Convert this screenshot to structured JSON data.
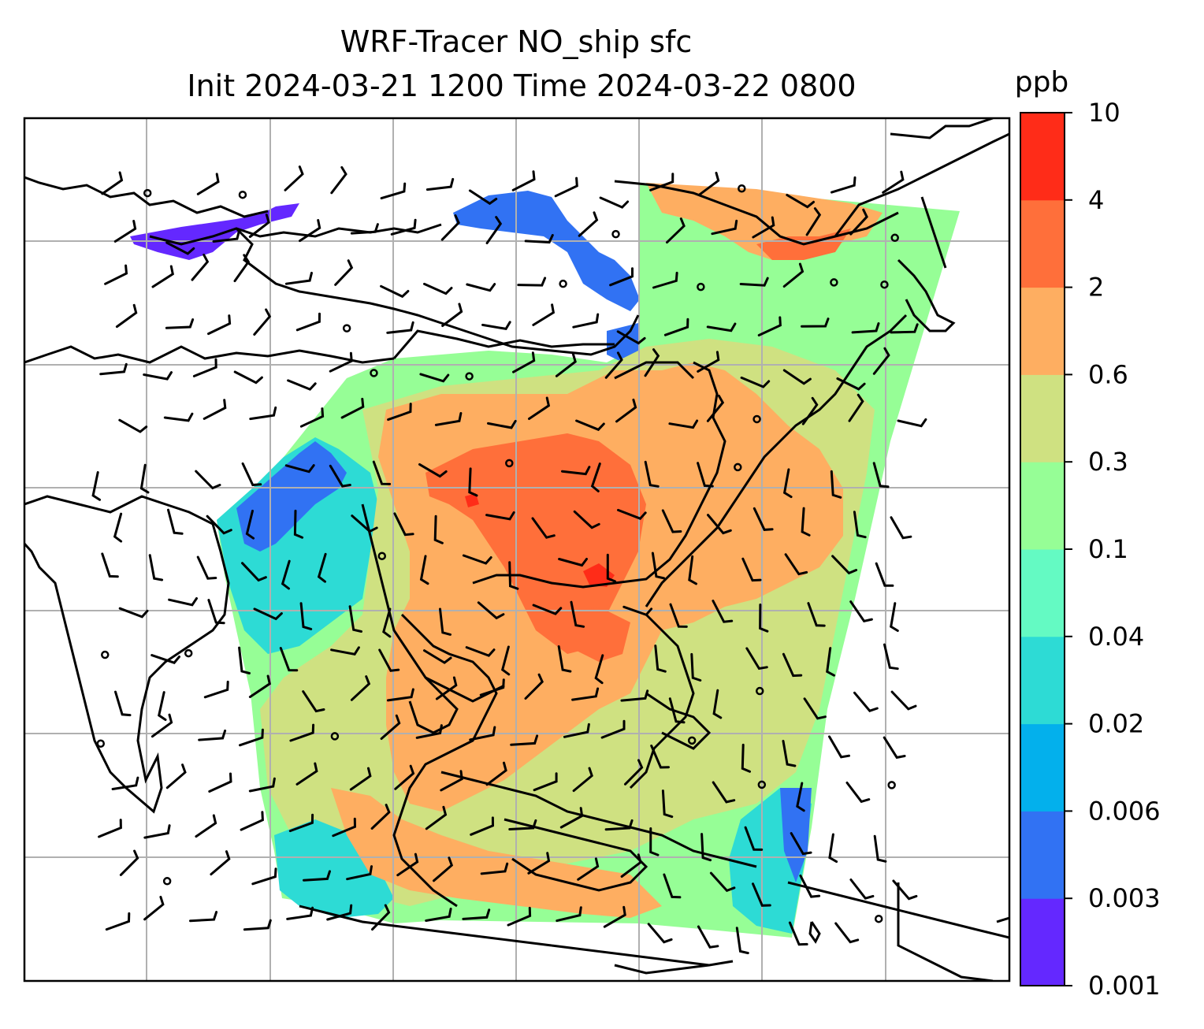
{
  "title": {
    "line1": "WRF-Tracer NO_ship sfc",
    "line2": "Init 2024-03-21 1200 Time 2024-03-22 0800"
  },
  "colorbar": {
    "unit": "ppb",
    "levels": [
      "0.001",
      "0.003",
      "0.006",
      "0.02",
      "0.04",
      "0.1",
      "0.3",
      "0.6",
      "2",
      "4",
      "10"
    ],
    "colors": [
      "#6428ff",
      "#3172f3",
      "#03b0ec",
      "#2ddbd5",
      "#64fac3",
      "#96fe96",
      "#cfe181",
      "#feae61",
      "#ff6f3a",
      "#ff2c18"
    ]
  },
  "map": {
    "gridlines": true,
    "coastline_color": "#000000",
    "grid_color": "#b0b0b0",
    "field": "NO_ship surface concentration",
    "overlay": "wind barbs"
  }
}
